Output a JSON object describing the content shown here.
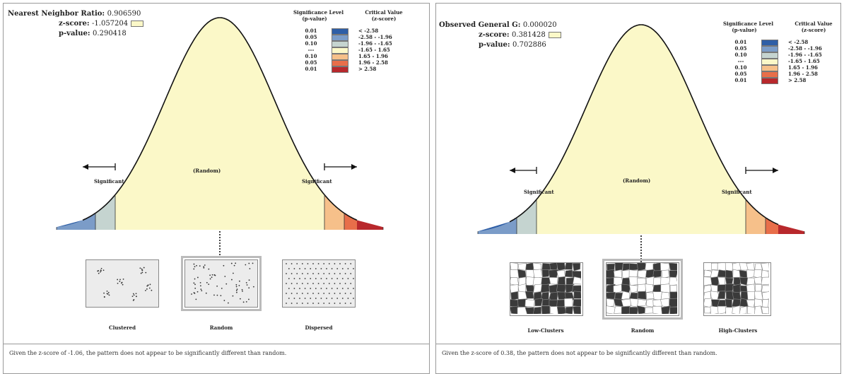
{
  "panels": [
    {
      "stat1_label": "Nearest Neighbor Ratio:",
      "stat1_value": "0.906590",
      "z_label": "z-score:",
      "z_value": "-1.057204",
      "p_label": "p-value:",
      "p_value": "0.290418",
      "center_label": "(Random)",
      "left_label": "Significant",
      "right_label": "Significant",
      "patterns": [
        "Clustered",
        "Random",
        "Dispersed"
      ],
      "caption": "Given the z-score of -1.06, the pattern does not appear to be significantly different than random."
    },
    {
      "stat1_label": "Observed General G:",
      "stat1_value": "0.000020",
      "z_label": "z-score:",
      "z_value": "0.381428",
      "p_label": "p-value:",
      "p_value": "0.702886",
      "center_label": "(Random)",
      "left_label": "Significant",
      "right_label": "Significant",
      "patterns": [
        "Low-Clusters",
        "Random",
        "High-Clusters"
      ],
      "caption": "Given the z-score of 0.38, the pattern does not appear to be significantly different than random."
    }
  ],
  "legend": {
    "header_left": [
      "Significance Level",
      "(p-value)"
    ],
    "header_right": [
      "Critical Value",
      "(z-score)"
    ],
    "rows": [
      {
        "p": "0.01",
        "z": "< -2.58",
        "color": "#2e5ea6"
      },
      {
        "p": "0.05",
        "z": "-2.58 - -1.96",
        "color": "#7b9cc8"
      },
      {
        "p": "0.10",
        "z": "-1.96 - -1.65",
        "color": "#c5d4d0"
      },
      {
        "p": "---",
        "z": "-1.65 - 1.65",
        "color": "#fbf8c8"
      },
      {
        "p": "0.10",
        "z": "1.65 - 1.96",
        "color": "#f6c08a"
      },
      {
        "p": "0.05",
        "z": "1.96 - 2.58",
        "color": "#e86e4a"
      },
      {
        "p": "0.01",
        "z": "> 2.58",
        "color": "#b8282c"
      }
    ]
  }
}
